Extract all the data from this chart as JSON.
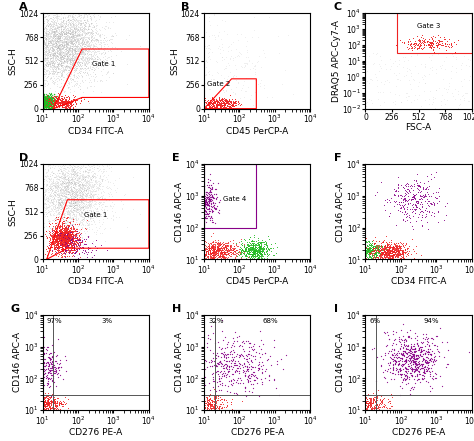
{
  "bg_color": "#ffffff",
  "label_fontsize": 8,
  "tick_fontsize": 5.5,
  "axis_label_fontsize": 6.5,
  "panels": [
    {
      "label": "A",
      "xaxis": "CD34 FITC-A",
      "yaxis": "SSC-H"
    },
    {
      "label": "B",
      "xaxis": "CD45 PerCP-A",
      "yaxis": "SSC-H"
    },
    {
      "label": "C",
      "xaxis": "FSC-A",
      "yaxis": "DRAQ5 APC-Cy7-A"
    },
    {
      "label": "D",
      "xaxis": "CD34 FITC-A",
      "yaxis": "SSC-H"
    },
    {
      "label": "E",
      "xaxis": "CD45 PerCP-A",
      "yaxis": "CD146 APC-A"
    },
    {
      "label": "F",
      "xaxis": "CD34 FITC-A",
      "yaxis": "CD146 APC-A"
    },
    {
      "label": "G",
      "xaxis": "CD276 PE-A",
      "yaxis": "CD146 APC-A",
      "pct_left": "97%",
      "pct_right": "3%"
    },
    {
      "label": "H",
      "xaxis": "CD276 PE-A",
      "yaxis": "CD146 APC-A",
      "pct_left": "32%",
      "pct_right": "68%"
    },
    {
      "label": "I",
      "xaxis": "CD276 PE-A",
      "yaxis": "CD146 APC-A",
      "pct_left": "6%",
      "pct_right": "94%"
    }
  ],
  "gray_color": "#a8a8a8",
  "green_color": "#22bb22",
  "red_color": "#ee2222",
  "purple_color": "#880088"
}
